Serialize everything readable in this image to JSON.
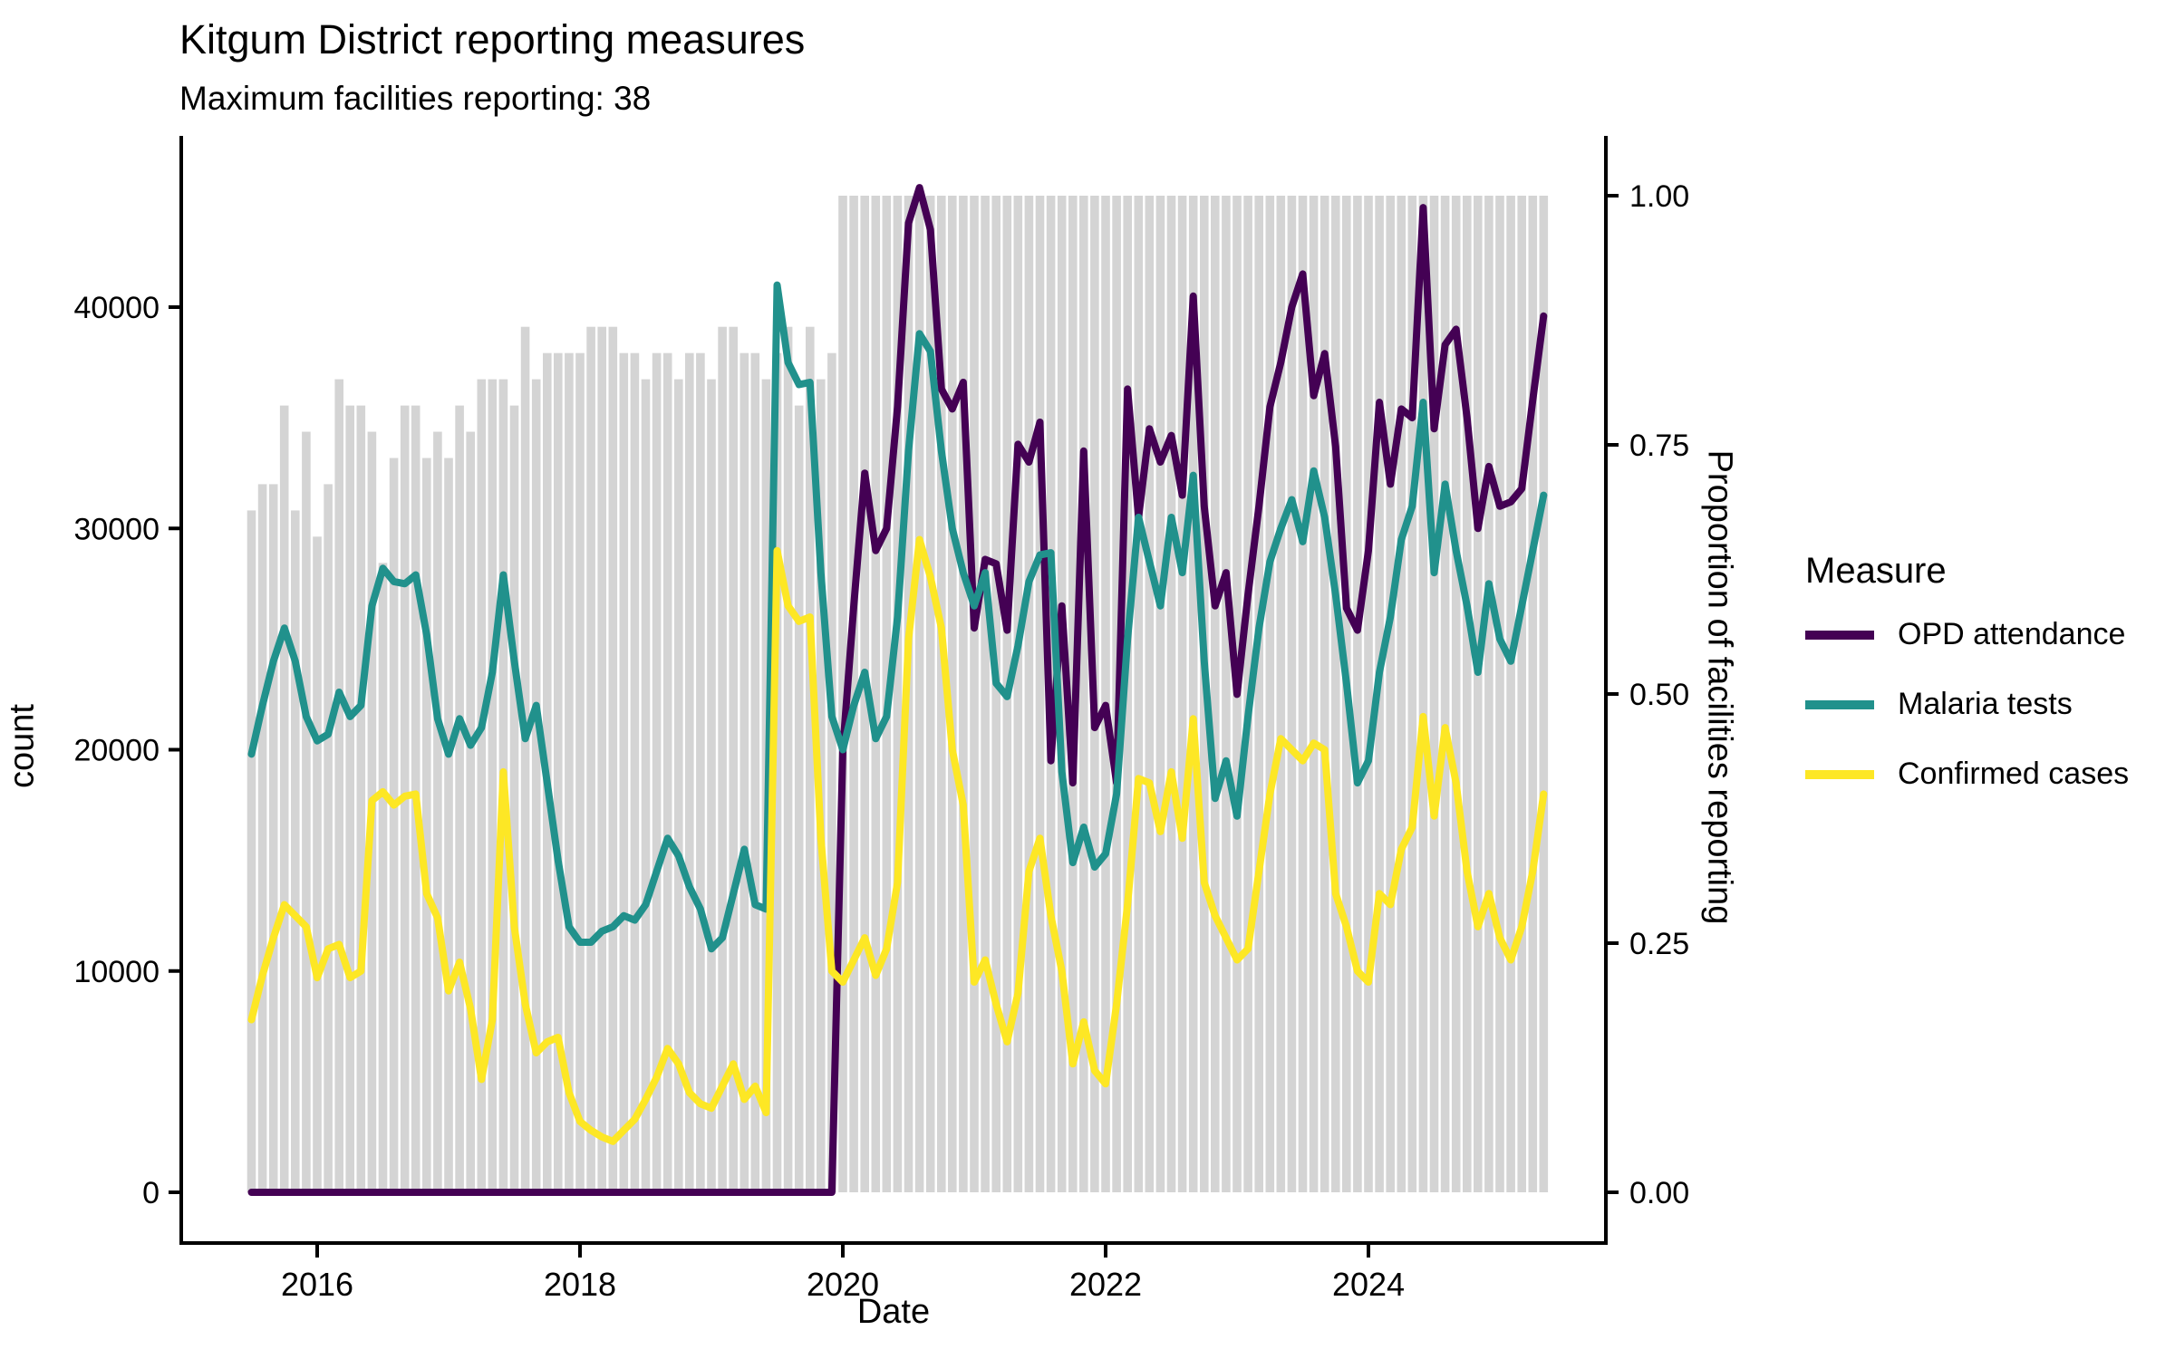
{
  "title": "Kitgum District reporting measures",
  "subtitle": "Maximum facilities reporting: 38",
  "chart_data": {
    "type": "line",
    "x_start": "2015-07",
    "x_end": "2025-05",
    "x_interval": "monthly",
    "x_axis": {
      "label": "Date",
      "tick_labels": [
        "2016",
        "2018",
        "2020",
        "2022",
        "2024"
      ],
      "tick_years": [
        2016,
        2018,
        2020,
        2022,
        2024
      ]
    },
    "y_axis_left": {
      "label": "count",
      "tick_labels": [
        "0",
        "10000",
        "20000",
        "30000",
        "40000"
      ],
      "tick_values": [
        0,
        10000,
        20000,
        30000,
        40000
      ]
    },
    "y_axis_right": {
      "label": "Proportion of facilities reporting",
      "tick_labels": [
        "0.00",
        "0.25",
        "0.50",
        "0.75",
        "1.00"
      ],
      "tick_values": [
        0,
        0.25,
        0.5,
        0.75,
        1
      ]
    },
    "legend": {
      "title": "Measure"
    },
    "bars": {
      "name": "Proportion of facilities reporting",
      "color": "#d4d4d4",
      "max_facilities": 38,
      "facilities": [
        26,
        27,
        27,
        30,
        26,
        29,
        25,
        27,
        31,
        30,
        30,
        29,
        24,
        28,
        30,
        30,
        28,
        29,
        28,
        30,
        29,
        31,
        31,
        31,
        30,
        33,
        31,
        32,
        32,
        32,
        32,
        33,
        33,
        33,
        32,
        32,
        31,
        32,
        32,
        31,
        32,
        32,
        31,
        33,
        33,
        32,
        32,
        31,
        32,
        33,
        30,
        33,
        31,
        32,
        38,
        38,
        38,
        38,
        38,
        38,
        38,
        38,
        38,
        38,
        38,
        38,
        38,
        38,
        38,
        38,
        38,
        38,
        38,
        38,
        38,
        38,
        38,
        38,
        38,
        38,
        38,
        38,
        38,
        38,
        38,
        38,
        38,
        38,
        38,
        38,
        38,
        38,
        38,
        38,
        38,
        38,
        38,
        38,
        38,
        38,
        38,
        38,
        38,
        38,
        38,
        38,
        38,
        38,
        38,
        38,
        38,
        38,
        38,
        38,
        38,
        38,
        38,
        38,
        38
      ]
    },
    "series": [
      {
        "name": "OPD attendance",
        "color": "#440154",
        "values": [
          0,
          0,
          0,
          0,
          0,
          0,
          0,
          0,
          0,
          0,
          0,
          0,
          0,
          0,
          0,
          0,
          0,
          0,
          0,
          0,
          0,
          0,
          0,
          0,
          0,
          0,
          0,
          0,
          0,
          0,
          0,
          0,
          0,
          0,
          0,
          0,
          0,
          0,
          0,
          0,
          0,
          0,
          0,
          0,
          0,
          0,
          0,
          0,
          0,
          0,
          0,
          0,
          0,
          0,
          20000,
          26500,
          32500,
          29000,
          30000,
          35500,
          43800,
          45400,
          43500,
          36300,
          35400,
          36600,
          25500,
          28600,
          28400,
          25400,
          33800,
          33000,
          34800,
          19500,
          26500,
          18500,
          33500,
          21000,
          22000,
          18500,
          36300,
          30500,
          34500,
          33000,
          34200,
          31500,
          40500,
          31000,
          26500,
          28000,
          22500,
          27000,
          31000,
          35500,
          37500,
          40000,
          41500,
          36000,
          37900,
          33700,
          26400,
          25400,
          29000,
          35700,
          32000,
          35400,
          35000,
          44500,
          34500,
          38300,
          39000,
          35000,
          30000,
          32800,
          31000,
          31200,
          31800,
          35800,
          39600
        ]
      },
      {
        "name": "Malaria tests",
        "color": "#21918c",
        "values": [
          19800,
          22000,
          24000,
          25500,
          24000,
          21500,
          20400,
          20700,
          22600,
          21500,
          22000,
          26500,
          28200,
          27600,
          27500,
          27900,
          25200,
          21400,
          19800,
          21400,
          20200,
          21000,
          23500,
          27900,
          24000,
          20500,
          22000,
          18500,
          15000,
          12000,
          11300,
          11300,
          11800,
          12000,
          12500,
          12300,
          13000,
          14500,
          16000,
          15200,
          13800,
          12800,
          11000,
          11500,
          13500,
          15500,
          13000,
          12800,
          41000,
          37500,
          36500,
          36600,
          28000,
          21500,
          20000,
          22000,
          23500,
          20500,
          21500,
          26000,
          33500,
          38800,
          38000,
          33500,
          30000,
          28000,
          26500,
          28000,
          23000,
          22400,
          24700,
          27600,
          28800,
          28900,
          19000,
          14900,
          16500,
          14700,
          15300,
          18000,
          25000,
          30500,
          28500,
          26500,
          30500,
          28000,
          32400,
          24000,
          17800,
          19500,
          17000,
          21500,
          25500,
          28500,
          30000,
          31300,
          29400,
          32600,
          30500,
          27000,
          23000,
          18500,
          19500,
          23500,
          26000,
          29500,
          31000,
          35700,
          28000,
          32000,
          29000,
          26500,
          23500,
          27500,
          25000,
          24000,
          26500,
          29000,
          31500
        ]
      },
      {
        "name": "Confirmed cases",
        "color": "#fde725",
        "values": [
          7800,
          9800,
          11500,
          13000,
          12500,
          12000,
          9700,
          11000,
          11200,
          9700,
          10000,
          17700,
          18100,
          17500,
          17900,
          18000,
          13500,
          12400,
          9100,
          10400,
          8300,
          5100,
          7800,
          19000,
          12000,
          8500,
          6300,
          6800,
          7000,
          4500,
          3200,
          2800,
          2500,
          2300,
          2800,
          3300,
          4200,
          5200,
          6500,
          5800,
          4500,
          4000,
          3800,
          4800,
          5800,
          4200,
          4800,
          3600,
          29000,
          26500,
          25800,
          26000,
          16000,
          10000,
          9500,
          10500,
          11500,
          9800,
          11000,
          14000,
          25000,
          29500,
          27800,
          25500,
          20000,
          17500,
          9500,
          10500,
          8500,
          6800,
          9000,
          14500,
          16000,
          12500,
          10000,
          5800,
          7700,
          5500,
          4900,
          8500,
          13000,
          18700,
          18500,
          16300,
          19000,
          16000,
          21400,
          14000,
          12500,
          11500,
          10500,
          11000,
          14500,
          18000,
          20500,
          20000,
          19500,
          20300,
          20000,
          13500,
          12000,
          10000,
          9500,
          13500,
          13000,
          15500,
          16500,
          21500,
          17000,
          21000,
          18500,
          14500,
          12000,
          13500,
          11500,
          10500,
          12000,
          14500,
          18000
        ]
      }
    ]
  }
}
